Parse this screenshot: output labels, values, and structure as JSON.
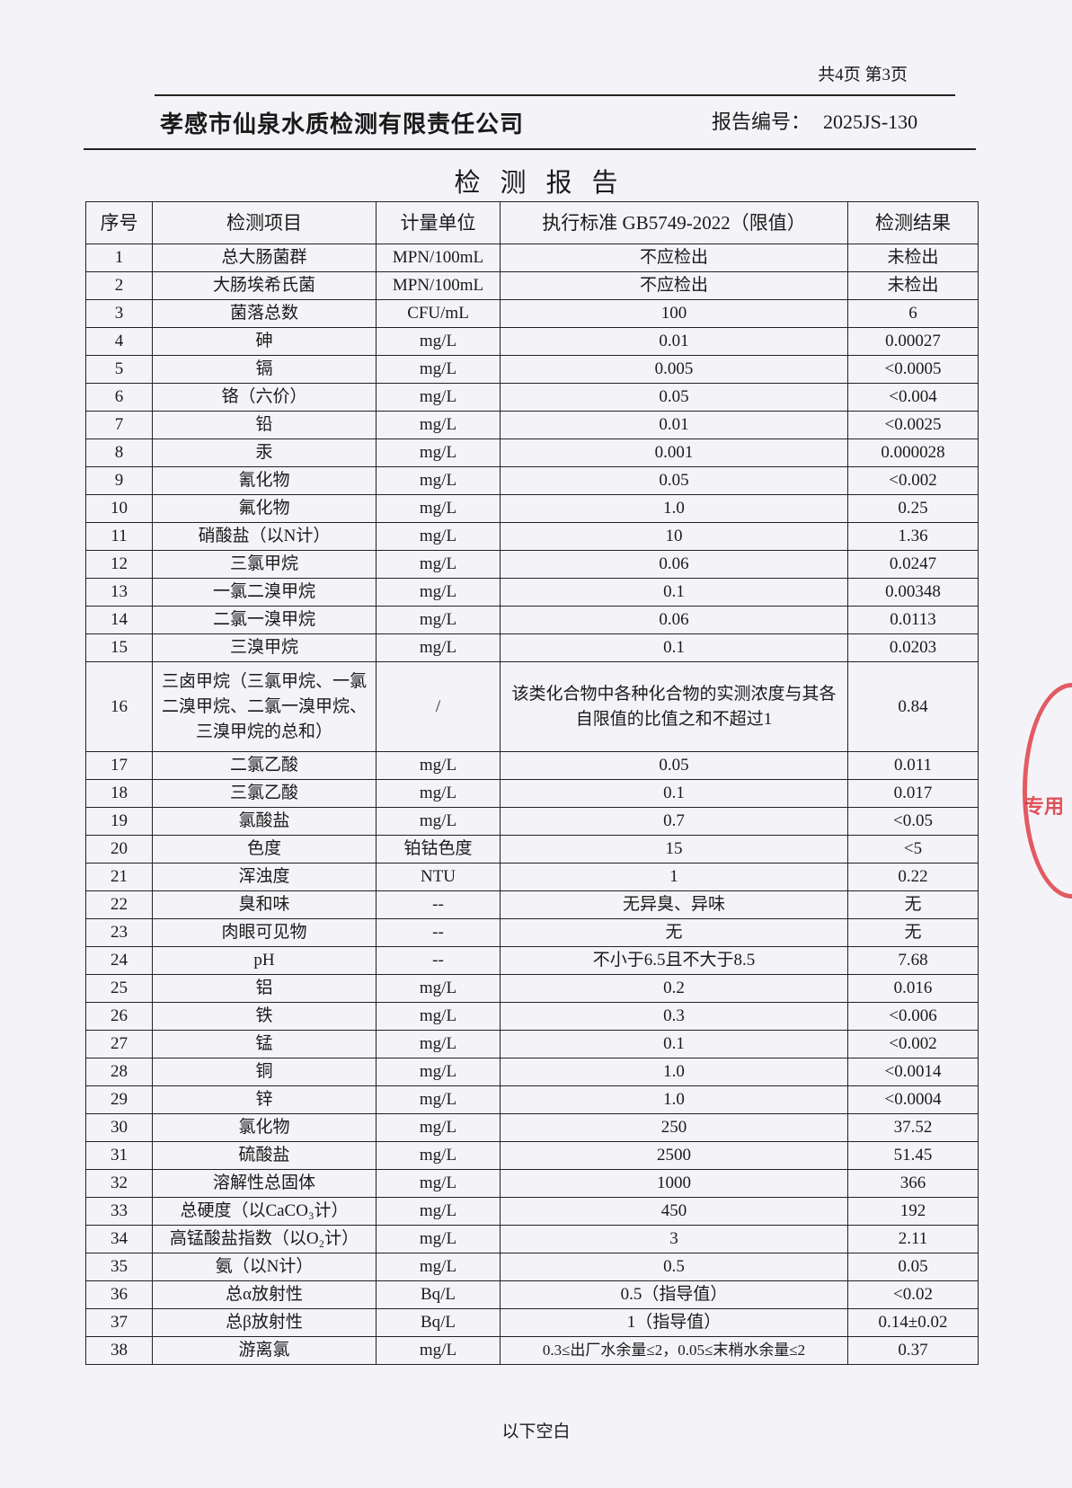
{
  "header": {
    "page_info": "共4页 第3页",
    "company": "孝感市仙泉水质检测有限责任公司",
    "report_no_label": "报告编号：",
    "report_no": "2025JS-130",
    "title": "检测报告"
  },
  "table": {
    "columns": [
      "序号",
      "检测项目",
      "计量单位",
      "执行标准 GB5749-2022（限值）",
      "检测结果"
    ],
    "rows": [
      [
        "1",
        "总大肠菌群",
        "MPN/100mL",
        "不应检出",
        "未检出"
      ],
      [
        "2",
        "大肠埃希氏菌",
        "MPN/100mL",
        "不应检出",
        "未检出"
      ],
      [
        "3",
        "菌落总数",
        "CFU/mL",
        "100",
        "6"
      ],
      [
        "4",
        "砷",
        "mg/L",
        "0.01",
        "0.00027"
      ],
      [
        "5",
        "镉",
        "mg/L",
        "0.005",
        "<0.0005"
      ],
      [
        "6",
        "铬（六价）",
        "mg/L",
        "0.05",
        "<0.004"
      ],
      [
        "7",
        "铅",
        "mg/L",
        "0.01",
        "<0.0025"
      ],
      [
        "8",
        "汞",
        "mg/L",
        "0.001",
        "0.000028"
      ],
      [
        "9",
        "氰化物",
        "mg/L",
        "0.05",
        "<0.002"
      ],
      [
        "10",
        "氟化物",
        "mg/L",
        "1.0",
        "0.25"
      ],
      [
        "11",
        "硝酸盐（以N计）",
        "mg/L",
        "10",
        "1.36"
      ],
      [
        "12",
        "三氯甲烷",
        "mg/L",
        "0.06",
        "0.0247"
      ],
      [
        "13",
        "一氯二溴甲烷",
        "mg/L",
        "0.1",
        "0.00348"
      ],
      [
        "14",
        "二氯一溴甲烷",
        "mg/L",
        "0.06",
        "0.0113"
      ],
      [
        "15",
        "三溴甲烷",
        "mg/L",
        "0.1",
        "0.0203"
      ],
      [
        "16",
        "三卤甲烷（三氯甲烷、一氯二溴甲烷、二氯一溴甲烷、三溴甲烷的总和）",
        "/",
        "该类化合物中各种化合物的实测浓度与其各自限值的比值之和不超过1",
        "0.84"
      ],
      [
        "17",
        "二氯乙酸",
        "mg/L",
        "0.05",
        "0.011"
      ],
      [
        "18",
        "三氯乙酸",
        "mg/L",
        "0.1",
        "0.017"
      ],
      [
        "19",
        "氯酸盐",
        "mg/L",
        "0.7",
        "<0.05"
      ],
      [
        "20",
        "色度",
        "铂钴色度",
        "15",
        "<5"
      ],
      [
        "21",
        "浑浊度",
        "NTU",
        "1",
        "0.22"
      ],
      [
        "22",
        "臭和味",
        "--",
        "无异臭、异味",
        "无"
      ],
      [
        "23",
        "肉眼可见物",
        "--",
        "无",
        "无"
      ],
      [
        "24",
        "pH",
        "--",
        "不小于6.5且不大于8.5",
        "7.68"
      ],
      [
        "25",
        "铝",
        "mg/L",
        "0.2",
        "0.016"
      ],
      [
        "26",
        "铁",
        "mg/L",
        "0.3",
        "<0.006"
      ],
      [
        "27",
        "锰",
        "mg/L",
        "0.1",
        "<0.002"
      ],
      [
        "28",
        "铜",
        "mg/L",
        "1.0",
        "<0.0014"
      ],
      [
        "29",
        "锌",
        "mg/L",
        "1.0",
        "<0.0004"
      ],
      [
        "30",
        "氯化物",
        "mg/L",
        "250",
        "37.52"
      ],
      [
        "31",
        "硫酸盐",
        "mg/L",
        "2500",
        "51.45"
      ],
      [
        "32",
        "溶解性总固体",
        "mg/L",
        "1000",
        "366"
      ],
      [
        "33",
        "总硬度（以CaCO₃计）",
        "mg/L",
        "450",
        "192"
      ],
      [
        "34",
        "高锰酸盐指数（以O₂计）",
        "mg/L",
        "3",
        "2.11"
      ],
      [
        "35",
        "氨（以N计）",
        "mg/L",
        "0.5",
        "0.05"
      ],
      [
        "36",
        "总α放射性",
        "Bq/L",
        "0.5（指导值）",
        "<0.02"
      ],
      [
        "37",
        "总β放射性",
        "Bq/L",
        "1（指导值）",
        "0.14±0.02"
      ],
      [
        "38",
        "游离氯",
        "mg/L",
        "0.3≤出厂水余量≤2，0.05≤末梢水余量≤2",
        "0.37"
      ]
    ]
  },
  "footer": {
    "blank_note": "以下空白"
  },
  "stamp": {
    "color": "#dc2832",
    "text": "专用章"
  }
}
